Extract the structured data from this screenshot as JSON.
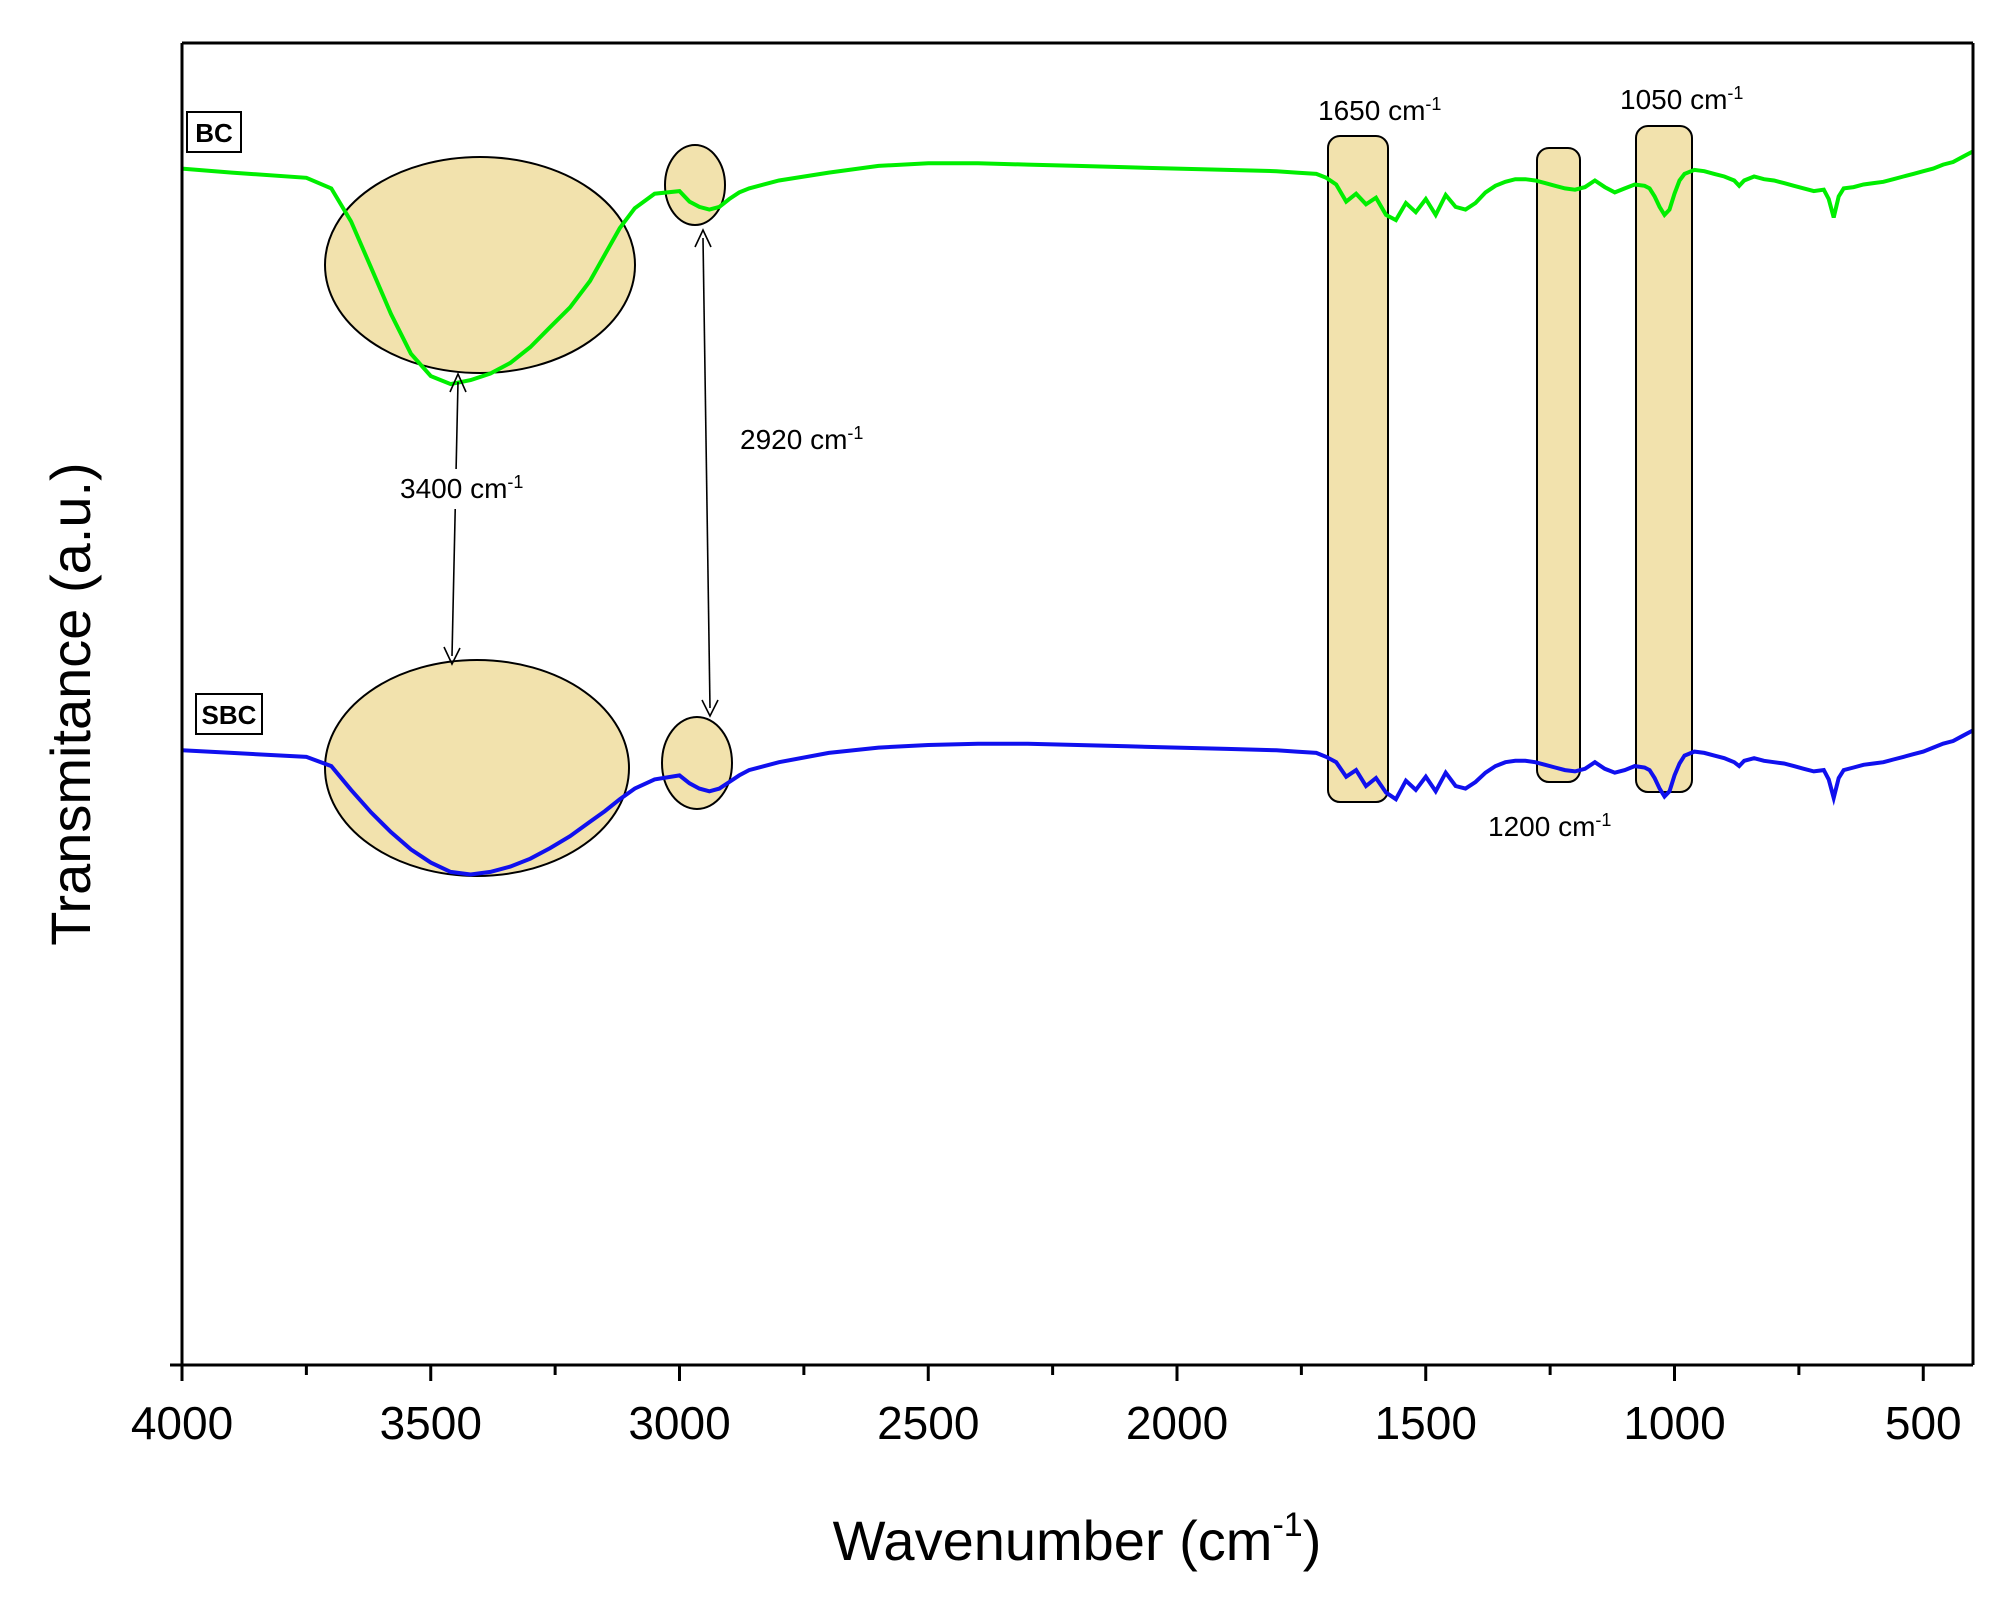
{
  "chart_data": {
    "type": "line",
    "title": "",
    "xlabel": "Wavenumber (cm",
    "xlabel_sup": "-1",
    "xlabel_suffix": ")",
    "ylabel": "Transmitance (a.u.)",
    "xlim": [
      4000,
      400
    ],
    "ylim": [
      0,
      100
    ],
    "x_reversed": true,
    "x_ticks": [
      "4000",
      "3500",
      "3000",
      "2500",
      "2000",
      "1500",
      "1000",
      "500"
    ],
    "x_tick_values": [
      4000,
      3500,
      3000,
      2500,
      2000,
      1500,
      1000,
      500
    ],
    "x_minor_tick_values": [
      3750,
      3250,
      2750,
      2250,
      1750,
      1250,
      750
    ],
    "grid": false,
    "series": [
      {
        "name": "BC",
        "color": "#00ee00",
        "x": [
          4000,
          3900,
          3750,
          3700,
          3660,
          3620,
          3580,
          3540,
          3500,
          3460,
          3420,
          3380,
          3340,
          3300,
          3260,
          3220,
          3180,
          3150,
          3120,
          3090,
          3050,
          3000,
          2980,
          2960,
          2940,
          2920,
          2900,
          2880,
          2860,
          2800,
          2700,
          2600,
          2500,
          2400,
          2300,
          2200,
          2100,
          2000,
          1900,
          1800,
          1760,
          1720,
          1700,
          1680,
          1660,
          1640,
          1620,
          1600,
          1580,
          1560,
          1540,
          1520,
          1500,
          1480,
          1460,
          1440,
          1420,
          1400,
          1380,
          1360,
          1340,
          1320,
          1300,
          1280,
          1260,
          1240,
          1220,
          1200,
          1180,
          1160,
          1140,
          1120,
          1100,
          1080,
          1060,
          1050,
          1040,
          1030,
          1020,
          1010,
          1000,
          990,
          980,
          960,
          940,
          920,
          900,
          880,
          870,
          860,
          840,
          820,
          800,
          780,
          760,
          740,
          720,
          700,
          690,
          680,
          670,
          660,
          640,
          620,
          600,
          580,
          560,
          540,
          520,
          500,
          480,
          460,
          440,
          420,
          400
        ],
        "values": [
          90.5,
          90.2,
          89.8,
          89.0,
          86.5,
          83.0,
          79.5,
          76.5,
          74.8,
          74.2,
          74.5,
          75.0,
          75.8,
          77.0,
          78.5,
          80.0,
          82.0,
          84.0,
          86.0,
          87.5,
          88.6,
          88.8,
          88.0,
          87.6,
          87.4,
          87.6,
          88.2,
          88.7,
          89.0,
          89.6,
          90.2,
          90.7,
          90.9,
          90.9,
          90.8,
          90.7,
          90.6,
          90.5,
          90.4,
          90.3,
          90.2,
          90.1,
          89.8,
          89.3,
          88.0,
          88.6,
          87.8,
          88.3,
          87.0,
          86.6,
          87.9,
          87.2,
          88.2,
          87.0,
          88.5,
          87.6,
          87.4,
          87.9,
          88.7,
          89.2,
          89.5,
          89.7,
          89.7,
          89.6,
          89.4,
          89.2,
          89.0,
          88.9,
          89.1,
          89.6,
          89.1,
          88.7,
          89.0,
          89.3,
          89.2,
          89.0,
          88.4,
          87.6,
          87.0,
          87.4,
          88.6,
          89.6,
          90.1,
          90.4,
          90.3,
          90.1,
          89.9,
          89.6,
          89.2,
          89.6,
          89.9,
          89.7,
          89.6,
          89.4,
          89.2,
          89.0,
          88.8,
          88.9,
          88.2,
          86.8,
          88.4,
          89.0,
          89.1,
          89.3,
          89.4,
          89.5,
          89.7,
          89.9,
          90.1,
          90.3,
          90.5,
          90.8,
          91.0,
          91.4,
          91.8
        ]
      },
      {
        "name": "SBC",
        "color": "#1010ee",
        "x": [
          4000,
          3900,
          3750,
          3700,
          3660,
          3620,
          3580,
          3540,
          3500,
          3460,
          3420,
          3380,
          3340,
          3300,
          3260,
          3220,
          3180,
          3150,
          3120,
          3090,
          3050,
          3000,
          2980,
          2960,
          2940,
          2920,
          2900,
          2880,
          2860,
          2800,
          2700,
          2600,
          2500,
          2400,
          2300,
          2200,
          2100,
          2000,
          1900,
          1800,
          1760,
          1720,
          1700,
          1680,
          1660,
          1640,
          1620,
          1600,
          1580,
          1560,
          1540,
          1520,
          1500,
          1480,
          1460,
          1440,
          1420,
          1400,
          1380,
          1360,
          1340,
          1320,
          1300,
          1280,
          1260,
          1240,
          1220,
          1200,
          1180,
          1160,
          1140,
          1120,
          1100,
          1080,
          1060,
          1050,
          1040,
          1030,
          1020,
          1010,
          1000,
          990,
          980,
          960,
          940,
          920,
          900,
          880,
          870,
          860,
          840,
          820,
          800,
          780,
          760,
          740,
          720,
          700,
          690,
          680,
          670,
          660,
          640,
          620,
          600,
          580,
          560,
          540,
          520,
          500,
          480,
          460,
          440,
          420,
          400
        ],
        "values": [
          46.5,
          46.3,
          46.0,
          45.3,
          43.5,
          41.8,
          40.3,
          39.0,
          38.0,
          37.3,
          37.1,
          37.3,
          37.7,
          38.3,
          39.1,
          40.0,
          41.1,
          41.9,
          42.8,
          43.6,
          44.3,
          44.6,
          44.0,
          43.6,
          43.4,
          43.6,
          44.1,
          44.6,
          45.0,
          45.6,
          46.3,
          46.7,
          46.9,
          47.0,
          47.0,
          46.9,
          46.8,
          46.7,
          46.6,
          46.5,
          46.4,
          46.3,
          46.0,
          45.6,
          44.5,
          45.0,
          43.8,
          44.4,
          43.3,
          42.8,
          44.2,
          43.5,
          44.5,
          43.4,
          44.8,
          43.8,
          43.6,
          44.1,
          44.8,
          45.3,
          45.6,
          45.7,
          45.7,
          45.6,
          45.4,
          45.2,
          45.0,
          44.9,
          45.1,
          45.6,
          45.1,
          44.8,
          45.0,
          45.3,
          45.2,
          45.0,
          44.4,
          43.6,
          43.0,
          43.4,
          44.6,
          45.5,
          46.1,
          46.4,
          46.3,
          46.1,
          45.9,
          45.6,
          45.3,
          45.7,
          45.9,
          45.7,
          45.6,
          45.5,
          45.3,
          45.1,
          44.9,
          45.0,
          44.3,
          42.9,
          44.4,
          45.0,
          45.2,
          45.4,
          45.5,
          45.6,
          45.8,
          46.0,
          46.2,
          46.4,
          46.7,
          47.0,
          47.2,
          47.6,
          48.0
        ]
      }
    ],
    "series_labels": [
      "BC",
      "SBC"
    ],
    "annotations": {
      "peak_3400": {
        "text": "3400 cm",
        "sup": "-1"
      },
      "peak_2920": {
        "text": "2920 cm",
        "sup": "-1"
      },
      "peak_1650": {
        "text": "1650 cm",
        "sup": "-1"
      },
      "peak_1200": {
        "text": "1200 cm",
        "sup": "-1"
      },
      "peak_1050": {
        "text": "1050 cm",
        "sup": "-1"
      }
    },
    "highlight_color": "#f2e2ad"
  }
}
